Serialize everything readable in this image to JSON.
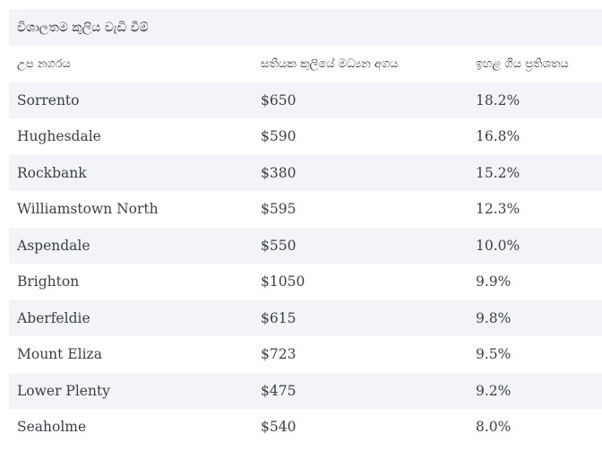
{
  "table": {
    "title": "විශාලතම කුලිය වැඩි වීම්",
    "headers": [
      "උප නගරය",
      "සතියක කුලියේ මධ්‍යන අගය",
      "ඉහළ ගිය ප්‍රතිශතය"
    ],
    "rows": [
      {
        "suburb": "Sorrento",
        "rent": "$650",
        "increase": "18.2%"
      },
      {
        "suburb": "Hughesdale",
        "rent": "$590",
        "increase": "16.8%"
      },
      {
        "suburb": "Rockbank",
        "rent": "$380",
        "increase": "15.2%"
      },
      {
        "suburb": "Williamstown North",
        "rent": "$595",
        "increase": "12.3%"
      },
      {
        "suburb": "Aspendale",
        "rent": "$550",
        "increase": "10.0%"
      },
      {
        "suburb": "Brighton",
        "rent": "$1050",
        "increase": "9.9%"
      },
      {
        "suburb": "Aberfeldie",
        "rent": "$615",
        "increase": "9.8%"
      },
      {
        "suburb": "Mount Eliza",
        "rent": "$723",
        "increase": "9.5%"
      },
      {
        "suburb": "Lower Plenty",
        "rent": "$475",
        "increase": "9.2%"
      },
      {
        "suburb": "Seaholme",
        "rent": "$540",
        "increase": "8.0%"
      }
    ]
  },
  "colors": {
    "stripe": "#f2f4f7",
    "text": "#3a3f47"
  }
}
